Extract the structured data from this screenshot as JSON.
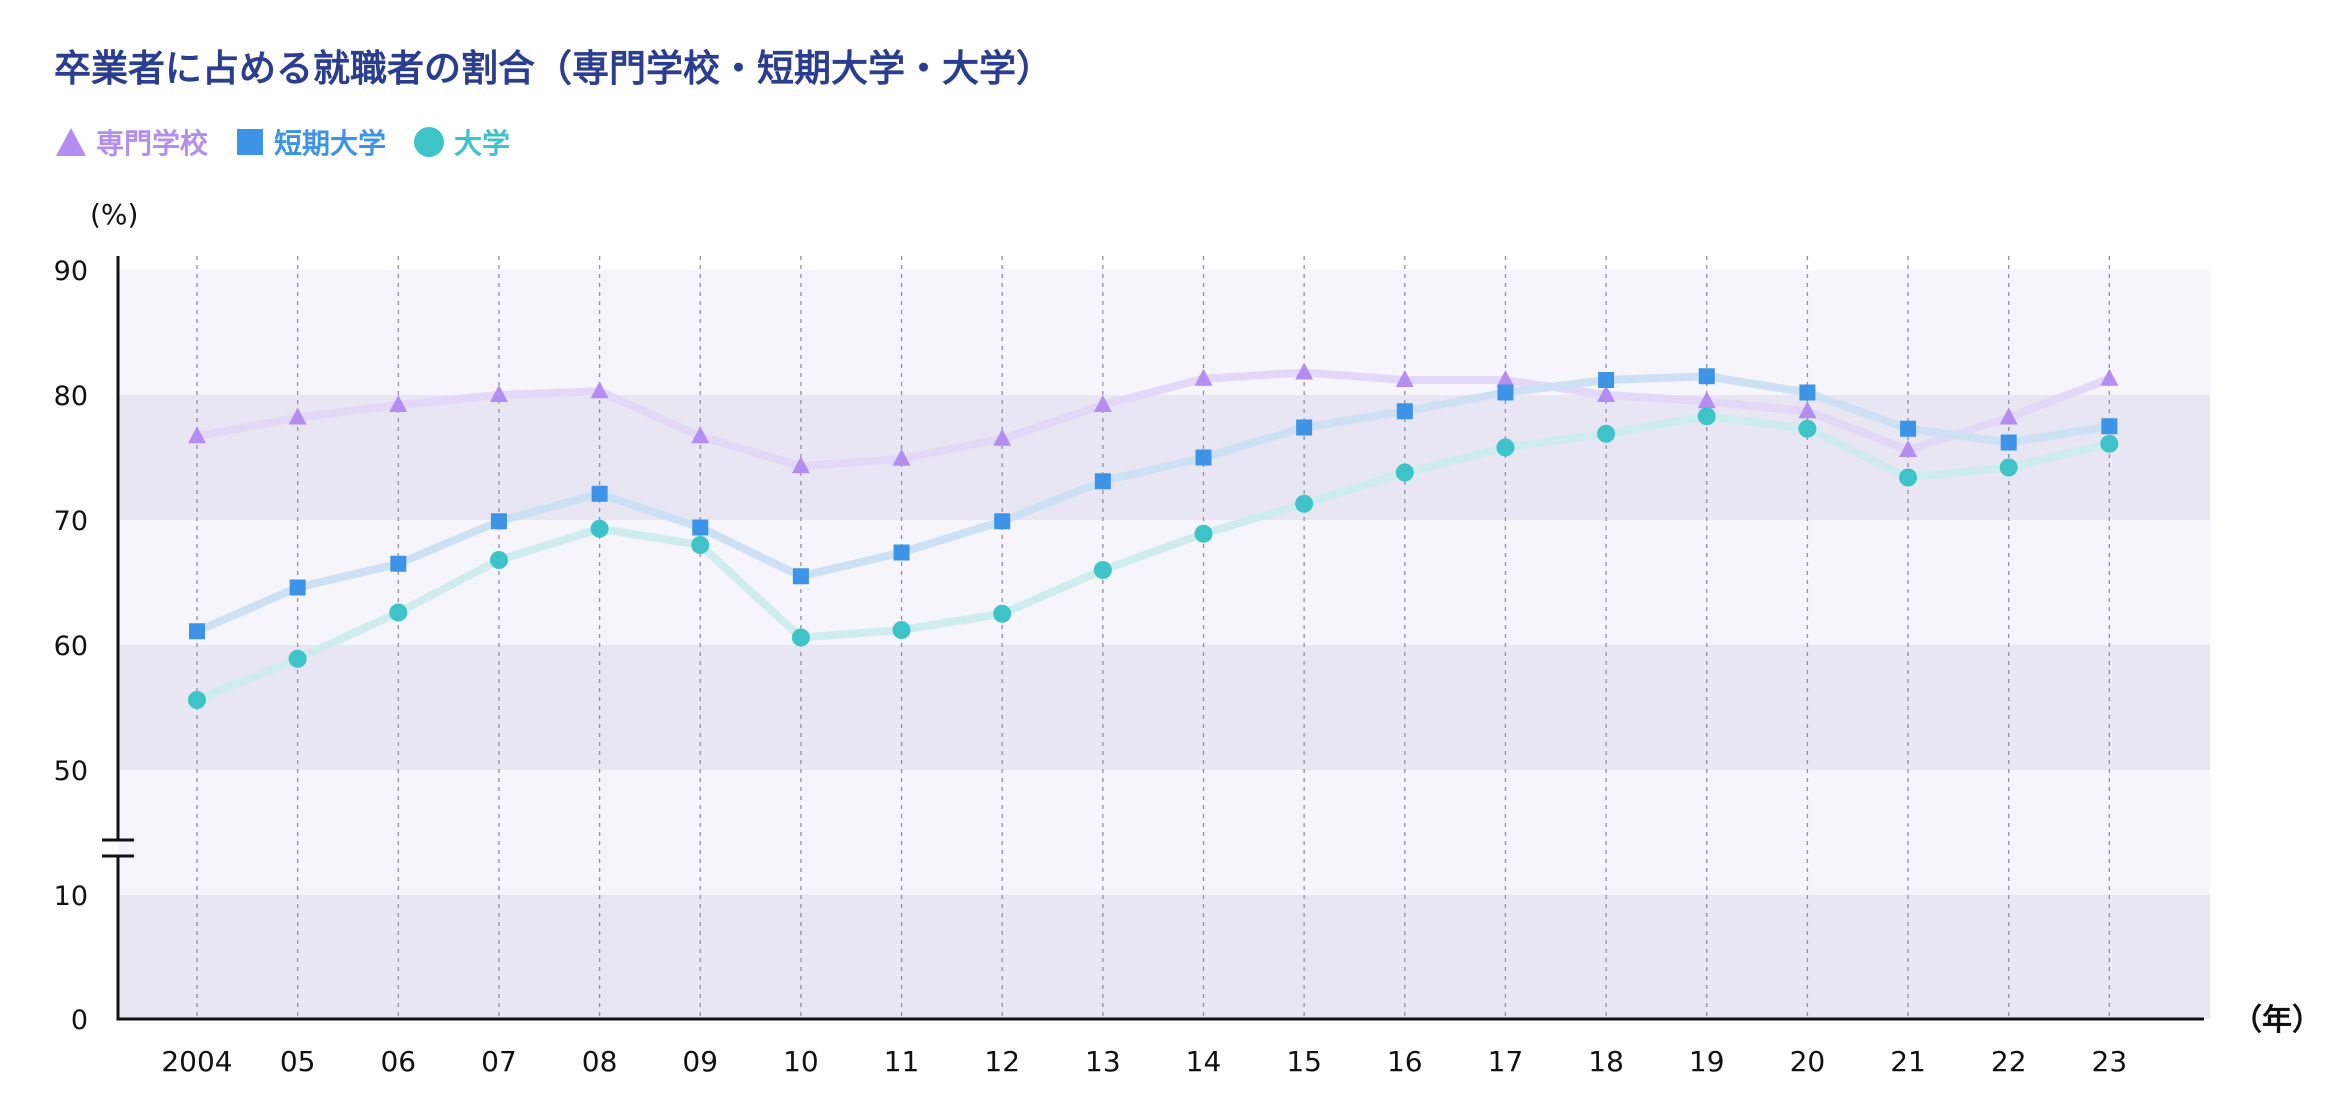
{
  "title": "卒業者に占める就職者の割合（専門学校・短期大学・大学）",
  "colors": {
    "title": "#2b3d8f",
    "band_dark": "#e8e6f2",
    "band_light": "#f6f5fb",
    "axis": "#111111"
  },
  "chart_data": {
    "type": "line",
    "y_unit_label": "(%)",
    "x_unit_label": "（年）",
    "categories": [
      "2004",
      "05",
      "06",
      "07",
      "08",
      "09",
      "10",
      "11",
      "12",
      "13",
      "14",
      "15",
      "16",
      "17",
      "18",
      "19",
      "20",
      "21",
      "22",
      "23"
    ],
    "y_ticks": [
      "90",
      "80",
      "70",
      "60",
      "50",
      "10",
      "0"
    ],
    "axis_break": "between 10 and 50",
    "ylim_upper": [
      50,
      90
    ],
    "ylim_lower": [
      0,
      10
    ],
    "grid": "vertical dashed lines at each year; alternating horizontal bands",
    "legend_position": "top-left",
    "series": [
      {
        "name": "専門学校",
        "marker": "triangle",
        "color": "#b38ef0",
        "line_color": "#e3d8f7",
        "values": [
          76.7,
          78.2,
          79.2,
          80.0,
          80.3,
          76.7,
          74.3,
          74.9,
          76.5,
          79.2,
          81.3,
          81.8,
          81.2,
          81.2,
          80.0,
          79.5,
          78.7,
          75.6,
          78.2,
          81.3
        ]
      },
      {
        "name": "短期大学",
        "marker": "square",
        "color": "#3d94e6",
        "line_color": "#cde0f4",
        "values": [
          61.1,
          64.6,
          66.5,
          69.9,
          72.1,
          69.4,
          65.5,
          67.4,
          69.9,
          73.1,
          75.0,
          77.4,
          78.7,
          80.2,
          81.2,
          81.5,
          80.2,
          77.3,
          76.2,
          77.5
        ]
      },
      {
        "name": "大学",
        "marker": "circle",
        "color": "#3ec4c8",
        "line_color": "#cfecef",
        "values": [
          55.6,
          58.9,
          62.6,
          66.8,
          69.3,
          68.0,
          60.6,
          61.2,
          62.5,
          66.0,
          68.9,
          71.3,
          73.8,
          75.8,
          76.9,
          78.3,
          77.3,
          73.4,
          74.2,
          76.1
        ]
      }
    ]
  }
}
